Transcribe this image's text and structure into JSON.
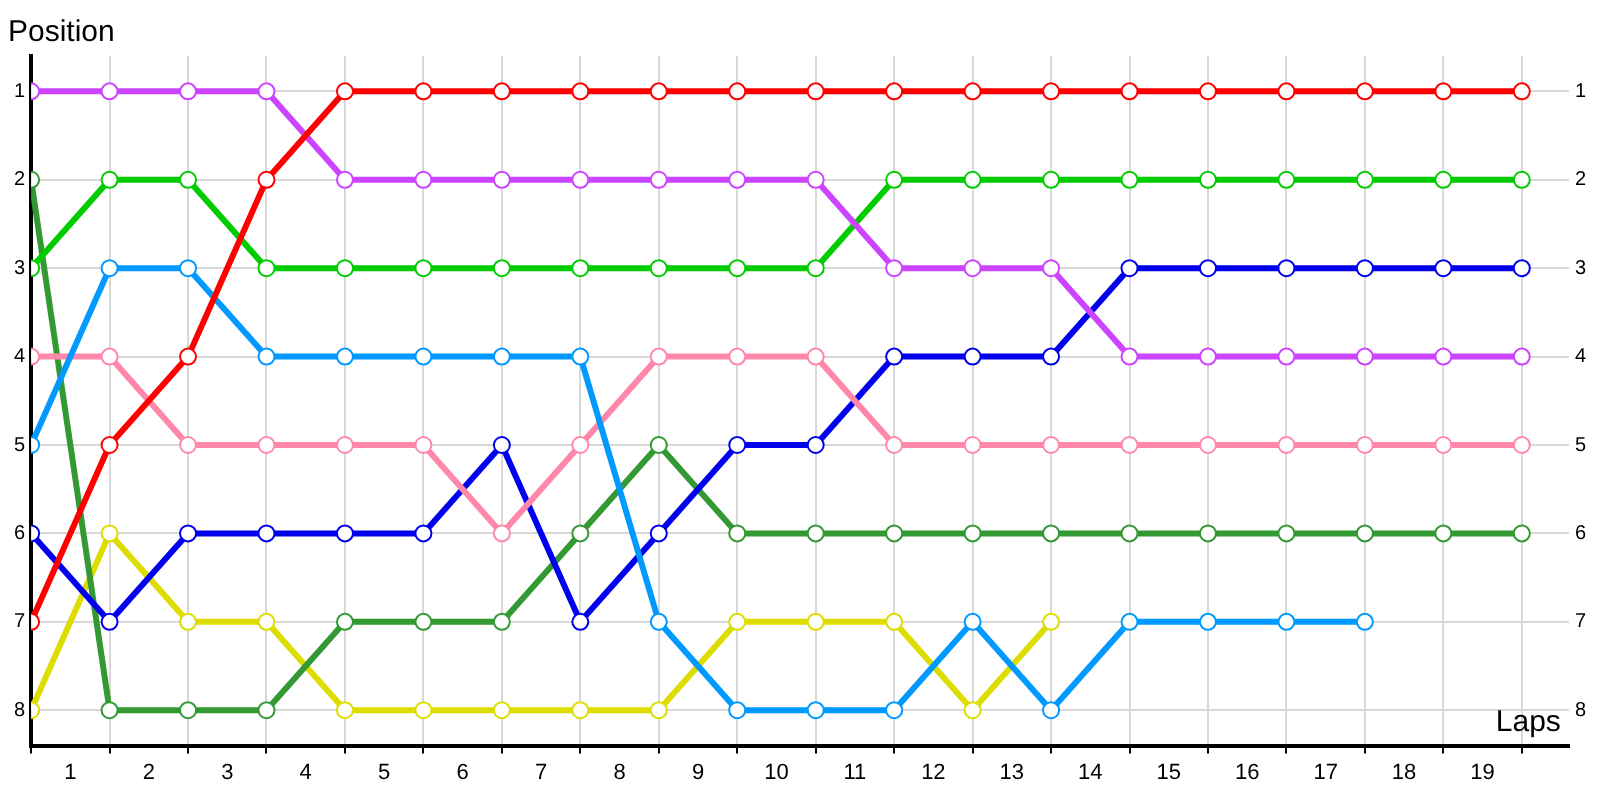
{
  "chart_data": {
    "type": "line",
    "xlabel": "Laps",
    "ylabel": "Position",
    "x": [
      0,
      1,
      2,
      3,
      4,
      5,
      6,
      7,
      8,
      9,
      10,
      11,
      12,
      13,
      14,
      15,
      16,
      17,
      18,
      19
    ],
    "xlim": [
      0,
      19.6
    ],
    "xticks": [
      {
        "value": 0,
        "label": null
      },
      {
        "value": 0.5,
        "label": "1"
      },
      {
        "value": 1,
        "label": null
      },
      {
        "value": 1.5,
        "label": "2"
      },
      {
        "value": 2,
        "label": null
      },
      {
        "value": 2.5,
        "label": "3"
      },
      {
        "value": 3,
        "label": null
      },
      {
        "value": 3.5,
        "label": "4"
      },
      {
        "value": 4,
        "label": null
      },
      {
        "value": 4.5,
        "label": "5"
      },
      {
        "value": 5,
        "label": null
      },
      {
        "value": 5.5,
        "label": "6"
      },
      {
        "value": 6,
        "label": null
      },
      {
        "value": 6.5,
        "label": "7"
      },
      {
        "value": 7,
        "label": null
      },
      {
        "value": 7.5,
        "label": "8"
      },
      {
        "value": 8,
        "label": null
      },
      {
        "value": 8.5,
        "label": "9"
      },
      {
        "value": 9,
        "label": null
      },
      {
        "value": 9.5,
        "label": "10"
      },
      {
        "value": 10,
        "label": null
      },
      {
        "value": 10.5,
        "label": "11"
      },
      {
        "value": 11,
        "label": null
      },
      {
        "value": 11.5,
        "label": "12"
      },
      {
        "value": 12,
        "label": null
      },
      {
        "value": 12.5,
        "label": "13"
      },
      {
        "value": 13,
        "label": null
      },
      {
        "value": 13.5,
        "label": "14"
      },
      {
        "value": 14,
        "label": null
      },
      {
        "value": 14.5,
        "label": "15"
      },
      {
        "value": 15,
        "label": null
      },
      {
        "value": 15.5,
        "label": "16"
      },
      {
        "value": 16,
        "label": null
      },
      {
        "value": 16.5,
        "label": "17"
      },
      {
        "value": 17,
        "label": null
      },
      {
        "value": 17.5,
        "label": "18"
      },
      {
        "value": 18,
        "label": null
      },
      {
        "value": 18.5,
        "label": "19"
      },
      {
        "value": 19,
        "label": null
      }
    ],
    "ylim": [
      8.4,
      0.6
    ],
    "yticks": [
      1,
      2,
      3,
      4,
      5,
      6,
      7,
      8
    ],
    "y2lim": [
      8.4,
      0.6
    ],
    "y2ticks": [
      1,
      2,
      3,
      4,
      5,
      6,
      7,
      8
    ],
    "grid": true,
    "legend": false,
    "marker": "circle",
    "line_style": "solid",
    "series": [
      {
        "color": "#ff0000",
        "values": [
          7,
          5,
          4,
          2,
          1,
          1,
          1,
          1,
          1,
          1,
          1,
          1,
          1,
          1,
          1,
          1,
          1,
          1,
          1,
          1
        ]
      },
      {
        "color": "#cc44ff",
        "values": [
          1,
          1,
          1,
          1,
          2,
          2,
          2,
          2,
          2,
          2,
          2,
          3,
          3,
          3,
          4,
          4,
          4,
          4,
          4,
          4
        ]
      },
      {
        "color": "#00cc00",
        "values": [
          3,
          2,
          2,
          3,
          3,
          3,
          3,
          3,
          3,
          3,
          3,
          2,
          2,
          2,
          2,
          2,
          2,
          2,
          2,
          2
        ]
      },
      {
        "color": "#0099ff",
        "values": [
          5,
          3,
          3,
          4,
          4,
          4,
          4,
          4,
          7,
          8,
          8,
          8,
          7,
          8,
          7,
          7,
          7,
          7,
          null,
          null
        ]
      },
      {
        "color": "#ff88aa",
        "values": [
          4,
          4,
          5,
          5,
          5,
          5,
          6,
          5,
          4,
          4,
          4,
          5,
          5,
          5,
          5,
          5,
          5,
          5,
          5,
          5
        ]
      },
      {
        "color": "#0000ee",
        "values": [
          6,
          7,
          6,
          6,
          6,
          6,
          5,
          7,
          6,
          5,
          5,
          4,
          4,
          4,
          3,
          3,
          3,
          3,
          3,
          3
        ]
      },
      {
        "color": "#339933",
        "values": [
          2,
          8,
          8,
          8,
          7,
          7,
          7,
          6,
          5,
          6,
          6,
          6,
          6,
          6,
          6,
          6,
          6,
          6,
          6,
          6
        ]
      },
      {
        "color": "#dddd00",
        "values": [
          8,
          6,
          7,
          7,
          8,
          8,
          8,
          8,
          8,
          7,
          7,
          7,
          8,
          7,
          null,
          null,
          null,
          null,
          null,
          null
        ]
      }
    ]
  }
}
